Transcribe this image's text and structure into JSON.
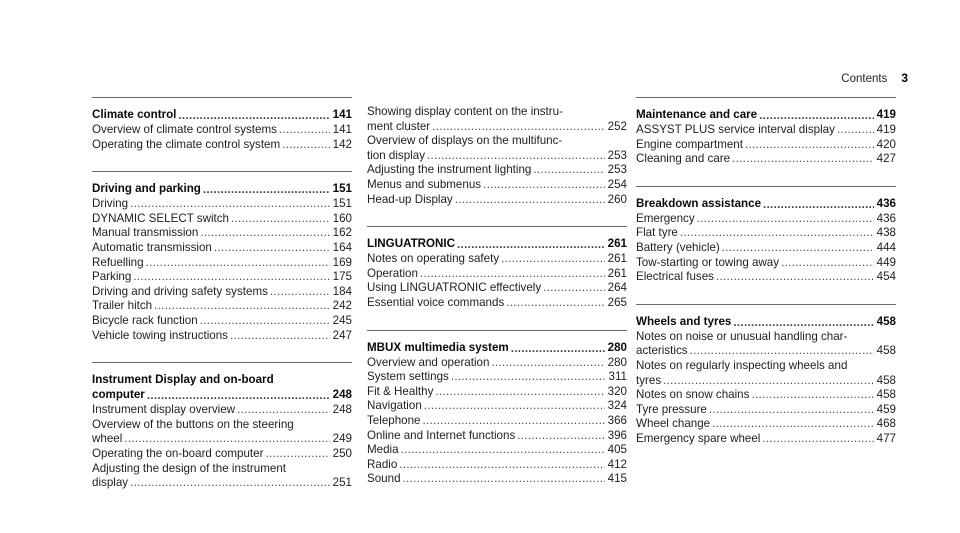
{
  "header": {
    "title": "Contents",
    "page_number": "3"
  },
  "columns": [
    {
      "sections": [
        {
          "heading": {
            "label": "Climate control",
            "page": "141"
          },
          "entries": [
            {
              "label": "Overview of climate control systems",
              "page": "141"
            },
            {
              "label": "Operating the climate control system",
              "page": "142"
            }
          ]
        },
        {
          "heading": {
            "label": "Driving and parking",
            "page": "151"
          },
          "entries": [
            {
              "label": "Driving",
              "page": "151"
            },
            {
              "label": "DYNAMIC SELECT switch",
              "page": "160"
            },
            {
              "label": "Manual transmission",
              "page": "162"
            },
            {
              "label": "Automatic transmission",
              "page": "164"
            },
            {
              "label": "Refuelling",
              "page": "169"
            },
            {
              "label": "Parking",
              "page": "175"
            },
            {
              "label": "Driving and driving safety systems",
              "page": "184"
            },
            {
              "label": "Trailer hitch",
              "page": "242"
            },
            {
              "label": "Bicycle rack function",
              "page": "245"
            },
            {
              "label": "Vehicle towing instructions",
              "page": "247"
            }
          ]
        },
        {
          "heading": {
            "label": "Instrument Display and on-board\ncomputer",
            "page": "248"
          },
          "entries": [
            {
              "label": "Instrument display overview",
              "page": "248"
            },
            {
              "label": "Overview of the buttons on the steering\nwheel",
              "page": "249"
            },
            {
              "label": "Operating the on-board computer",
              "page": "250"
            },
            {
              "label": "Adjusting the design of the instrument\ndisplay",
              "page": "251"
            }
          ]
        }
      ]
    },
    {
      "sections": [
        {
          "heading": null,
          "entries": [
            {
              "label": "Showing display content on the instru-\nment cluster",
              "page": "252"
            },
            {
              "label": "Overview of displays on the multifunc-\ntion display",
              "page": "253"
            },
            {
              "label": "Adjusting the instrument lighting",
              "page": "253"
            },
            {
              "label": "Menus and submenus",
              "page": "254"
            },
            {
              "label": "Head-up Display",
              "page": "260"
            }
          ]
        },
        {
          "heading": {
            "label": "LINGUATRONIC",
            "page": "261"
          },
          "entries": [
            {
              "label": "Notes on operating safety",
              "page": "261"
            },
            {
              "label": "Operation",
              "page": "261"
            },
            {
              "label": "Using LINGUATRONIC effectively",
              "page": "264"
            },
            {
              "label": "Essential voice commands",
              "page": "265"
            }
          ]
        },
        {
          "heading": {
            "label": "MBUX multimedia system",
            "page": "280"
          },
          "entries": [
            {
              "label": "Overview and operation",
              "page": "280"
            },
            {
              "label": "System settings",
              "page": "311"
            },
            {
              "label": "Fit & Healthy",
              "page": "320"
            },
            {
              "label": "Navigation",
              "page": "324"
            },
            {
              "label": "Telephone",
              "page": "366"
            },
            {
              "label": "Online and Internet functions",
              "page": "396"
            },
            {
              "label": "Media",
              "page": "405"
            },
            {
              "label": "Radio",
              "page": "412"
            },
            {
              "label": "Sound",
              "page": "415"
            }
          ]
        }
      ]
    },
    {
      "sections": [
        {
          "heading": {
            "label": "Maintenance and care",
            "page": "419"
          },
          "entries": [
            {
              "label": "ASSYST PLUS service interval display",
              "page": "419"
            },
            {
              "label": "Engine compartment",
              "page": "420"
            },
            {
              "label": "Cleaning and care",
              "page": "427"
            }
          ]
        },
        {
          "heading": {
            "label": "Breakdown assistance",
            "page": "436"
          },
          "entries": [
            {
              "label": "Emergency",
              "page": "436"
            },
            {
              "label": "Flat tyre",
              "page": "438"
            },
            {
              "label": "Battery (vehicle)",
              "page": "444"
            },
            {
              "label": "Tow-starting or towing away",
              "page": "449"
            },
            {
              "label": "Electrical fuses",
              "page": "454"
            }
          ]
        },
        {
          "heading": {
            "label": "Wheels and tyres",
            "page": "458"
          },
          "entries": [
            {
              "label": "Notes on noise or unusual handling char-\nacteristics",
              "page": "458"
            },
            {
              "label": "Notes on regularly inspecting wheels and\ntyres",
              "page": "458"
            },
            {
              "label": "Notes on snow chains",
              "page": "458"
            },
            {
              "label": "Tyre pressure",
              "page": "459"
            },
            {
              "label": "Wheel change",
              "page": "468"
            },
            {
              "label": "Emergency spare wheel",
              "page": "477"
            }
          ]
        }
      ]
    }
  ]
}
